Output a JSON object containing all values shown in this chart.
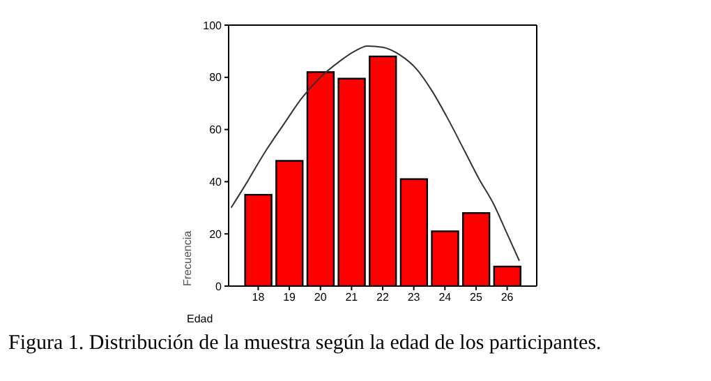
{
  "chart_data": {
    "type": "bar",
    "xlabel": "Edad",
    "ylabel": "Frecuencia",
    "x": [
      18,
      19,
      20,
      21,
      22,
      23,
      24,
      25,
      26
    ],
    "series": [
      {
        "color": "#ff0000",
        "values": [
          35,
          48,
          82,
          79.5,
          88,
          41,
          21,
          28,
          7.5
        ]
      },
      {
        "type": "line",
        "color": "#333333",
        "x": [
          17.13,
          17.6,
          18.2,
          18.82,
          19.4,
          20,
          20.6,
          21.1,
          21.51,
          22,
          22.55,
          23.1,
          23.6,
          24.1,
          24.64,
          25.1,
          25.54,
          26,
          26.39
        ],
        "values": [
          30,
          39,
          51,
          62,
          72,
          80,
          86,
          90,
          92,
          91.5,
          88.6,
          83,
          74.5,
          64,
          51.6,
          41,
          32,
          20,
          9.7
        ]
      }
    ],
    "xlim": [
      17.05,
      26.95
    ],
    "xticks": [
      18,
      19,
      20,
      21,
      22,
      23,
      24,
      25,
      26
    ],
    "ylim": [
      0,
      100
    ],
    "yticks": [
      0,
      20,
      40,
      60,
      80,
      100
    ],
    "grid": false,
    "legend": false,
    "marker": "none",
    "line_style": "solid",
    "annotations": [
      "Figura 1. Distribución de la muestra según la edad de los participantes."
    ]
  }
}
